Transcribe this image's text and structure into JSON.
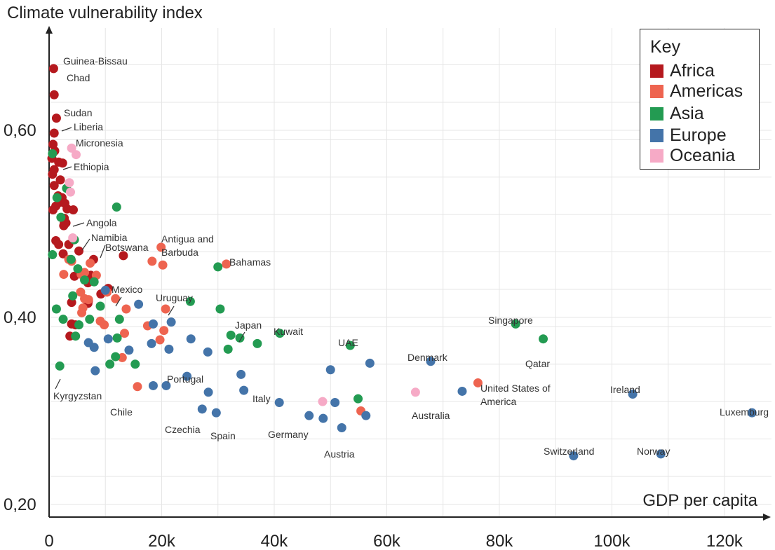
{
  "chart_data": {
    "type": "scatter",
    "title": "",
    "ylabel": "Climate vulnerability index",
    "xlabel": "GDP per capita",
    "xlim": [
      0,
      128000
    ],
    "ylim": [
      0.19,
      0.69
    ],
    "x_ticks": [
      0,
      20000,
      40000,
      60000,
      80000,
      100000,
      120000
    ],
    "x_tick_labels": [
      "0",
      "20k",
      "40k",
      "60k",
      "80k",
      "100k",
      "120k"
    ],
    "y_ticks": [
      0.2,
      0.4,
      0.6
    ],
    "y_tick_labels": [
      "0,20",
      "0,40",
      "0,60"
    ],
    "grid": true,
    "legend": {
      "title": "Key",
      "position": "top-right",
      "entries": [
        {
          "name": "Africa",
          "color": "#b5191e"
        },
        {
          "name": "Americas",
          "color": "#ee6450"
        },
        {
          "name": "Asia",
          "color": "#239b52"
        },
        {
          "name": "Europe",
          "color": "#4474a9"
        },
        {
          "name": "Oceania",
          "color": "#f6aac6"
        }
      ]
    },
    "series": [
      {
        "name": "Africa",
        "color": "#b5191e",
        "points": [
          {
            "x": 800,
            "y": 0.666,
            "label": "Guinea-Bissau"
          },
          {
            "x": 900,
            "y": 0.638,
            "label": "Chad"
          },
          {
            "x": 1300,
            "y": 0.613,
            "label": "Sudan"
          },
          {
            "x": 900,
            "y": 0.597,
            "label": "Liberia"
          },
          {
            "x": 700,
            "y": 0.585
          },
          {
            "x": 1000,
            "y": 0.578
          },
          {
            "x": 500,
            "y": 0.57
          },
          {
            "x": 1700,
            "y": 0.566
          },
          {
            "x": 2400,
            "y": 0.565
          },
          {
            "x": 900,
            "y": 0.558,
            "label": "Ethiopia"
          },
          {
            "x": 600,
            "y": 0.553
          },
          {
            "x": 2000,
            "y": 0.547
          },
          {
            "x": 900,
            "y": 0.541
          },
          {
            "x": 1600,
            "y": 0.53
          },
          {
            "x": 2300,
            "y": 0.528
          },
          {
            "x": 1900,
            "y": 0.523
          },
          {
            "x": 2800,
            "y": 0.522
          },
          {
            "x": 1200,
            "y": 0.519
          },
          {
            "x": 3200,
            "y": 0.516
          },
          {
            "x": 4300,
            "y": 0.515
          },
          {
            "x": 700,
            "y": 0.515
          },
          {
            "x": 2700,
            "y": 0.506
          },
          {
            "x": 3000,
            "y": 0.501
          },
          {
            "x": 2600,
            "y": 0.498
          },
          {
            "x": 2700,
            "y": 0.501,
            "label": "Angola"
          },
          {
            "x": 1200,
            "y": 0.482
          },
          {
            "x": 1700,
            "y": 0.478
          },
          {
            "x": 3500,
            "y": 0.478
          },
          {
            "x": 5300,
            "y": 0.471
          },
          {
            "x": 2500,
            "y": 0.468
          },
          {
            "x": 13200,
            "y": 0.466
          },
          {
            "x": 7900,
            "y": 0.462,
            "label": "Botswana"
          },
          {
            "x": 4500,
            "y": 0.444
          },
          {
            "x": 7400,
            "y": 0.445
          },
          {
            "x": 6900,
            "y": 0.437
          },
          {
            "x": 10500,
            "y": 0.431
          },
          {
            "x": 9200,
            "y": 0.425
          },
          {
            "x": 7000,
            "y": 0.418
          },
          {
            "x": 4000,
            "y": 0.416
          },
          {
            "x": 4000,
            "y": 0.393
          },
          {
            "x": 4700,
            "y": 0.392
          },
          {
            "x": 3700,
            "y": 0.38
          },
          {
            "x": 6900,
            "y": 0.415
          }
        ]
      },
      {
        "name": "Americas",
        "color": "#ee6450",
        "points": [
          {
            "x": 19900,
            "y": 0.475
          },
          {
            "x": 20200,
            "y": 0.456
          },
          {
            "x": 18300,
            "y": 0.46
          },
          {
            "x": 31500,
            "y": 0.457,
            "label": "Bahamas"
          },
          {
            "x": 3500,
            "y": 0.462
          },
          {
            "x": 4000,
            "y": 0.46
          },
          {
            "x": 7300,
            "y": 0.458
          },
          {
            "x": 2600,
            "y": 0.446
          },
          {
            "x": 5700,
            "y": 0.446
          },
          {
            "x": 6300,
            "y": 0.448
          },
          {
            "x": 8400,
            "y": 0.445
          },
          {
            "x": 5600,
            "y": 0.427
          },
          {
            "x": 6300,
            "y": 0.42
          },
          {
            "x": 7000,
            "y": 0.419
          },
          {
            "x": 11800,
            "y": 0.42,
            "label": "Mexico"
          },
          {
            "x": 10300,
            "y": 0.427
          },
          {
            "x": 6000,
            "y": 0.41
          },
          {
            "x": 5800,
            "y": 0.405
          },
          {
            "x": 20700,
            "y": 0.409,
            "label": "Uruguay"
          },
          {
            "x": 13700,
            "y": 0.409
          },
          {
            "x": 9100,
            "y": 0.396
          },
          {
            "x": 9800,
            "y": 0.392
          },
          {
            "x": 17500,
            "y": 0.391
          },
          {
            "x": 20400,
            "y": 0.386
          },
          {
            "x": 13400,
            "y": 0.383
          },
          {
            "x": 19700,
            "y": 0.376
          },
          {
            "x": 13000,
            "y": 0.357
          },
          {
            "x": 15700,
            "y": 0.326,
            "label": "Chile"
          },
          {
            "x": 76200,
            "y": 0.33,
            "label": "United States of America"
          },
          {
            "x": 55400,
            "y": 0.3
          }
        ]
      },
      {
        "name": "Asia",
        "color": "#239b52",
        "points": [
          {
            "x": 12000,
            "y": 0.518
          },
          {
            "x": 600,
            "y": 0.575
          },
          {
            "x": 3100,
            "y": 0.538
          },
          {
            "x": 1400,
            "y": 0.528
          },
          {
            "x": 2100,
            "y": 0.507
          },
          {
            "x": 4500,
            "y": 0.483,
            "label": "Namibia"
          },
          {
            "x": 600,
            "y": 0.467
          },
          {
            "x": 3900,
            "y": 0.462
          },
          {
            "x": 5100,
            "y": 0.452
          },
          {
            "x": 6300,
            "y": 0.44
          },
          {
            "x": 8000,
            "y": 0.438
          },
          {
            "x": 4200,
            "y": 0.423
          },
          {
            "x": 9100,
            "y": 0.412
          },
          {
            "x": 1300,
            "y": 0.409
          },
          {
            "x": 7200,
            "y": 0.398
          },
          {
            "x": 2500,
            "y": 0.398
          },
          {
            "x": 12500,
            "y": 0.398
          },
          {
            "x": 25100,
            "y": 0.417
          },
          {
            "x": 30400,
            "y": 0.409
          },
          {
            "x": 30000,
            "y": 0.454
          },
          {
            "x": 4700,
            "y": 0.38
          },
          {
            "x": 5300,
            "y": 0.392
          },
          {
            "x": 12100,
            "y": 0.378
          },
          {
            "x": 11800,
            "y": 0.358
          },
          {
            "x": 10800,
            "y": 0.35
          },
          {
            "x": 15300,
            "y": 0.35
          },
          {
            "x": 32300,
            "y": 0.381
          },
          {
            "x": 33900,
            "y": 0.378,
            "label": "Japan"
          },
          {
            "x": 31800,
            "y": 0.366
          },
          {
            "x": 37000,
            "y": 0.372
          },
          {
            "x": 41000,
            "y": 0.383,
            "label": "Kuwait"
          },
          {
            "x": 53500,
            "y": 0.37,
            "label": "UAE"
          },
          {
            "x": 1900,
            "y": 0.348,
            "label": "Kyrgyzstan"
          },
          {
            "x": 54900,
            "y": 0.313
          },
          {
            "x": 82900,
            "y": 0.393,
            "label": "Singapore"
          },
          {
            "x": 87800,
            "y": 0.377,
            "label": "Qatar"
          }
        ]
      },
      {
        "name": "Europe",
        "color": "#4474a9",
        "points": [
          {
            "x": 10000,
            "y": 0.429
          },
          {
            "x": 15900,
            "y": 0.414
          },
          {
            "x": 21700,
            "y": 0.395
          },
          {
            "x": 18500,
            "y": 0.393
          },
          {
            "x": 10500,
            "y": 0.377
          },
          {
            "x": 7000,
            "y": 0.373
          },
          {
            "x": 8000,
            "y": 0.368
          },
          {
            "x": 14200,
            "y": 0.365
          },
          {
            "x": 18200,
            "y": 0.372
          },
          {
            "x": 21300,
            "y": 0.366
          },
          {
            "x": 25200,
            "y": 0.377
          },
          {
            "x": 28200,
            "y": 0.363
          },
          {
            "x": 8200,
            "y": 0.343
          },
          {
            "x": 24500,
            "y": 0.337
          },
          {
            "x": 18500,
            "y": 0.327
          },
          {
            "x": 20800,
            "y": 0.327
          },
          {
            "x": 28300,
            "y": 0.32,
            "label": "Portugal"
          },
          {
            "x": 34100,
            "y": 0.339
          },
          {
            "x": 34600,
            "y": 0.322,
            "label": "Italy"
          },
          {
            "x": 27200,
            "y": 0.302,
            "label": "Czechia"
          },
          {
            "x": 29700,
            "y": 0.298,
            "label": "Spain"
          },
          {
            "x": 40900,
            "y": 0.309,
            "label": "Germany"
          },
          {
            "x": 46200,
            "y": 0.295
          },
          {
            "x": 48700,
            "y": 0.292
          },
          {
            "x": 50800,
            "y": 0.309
          },
          {
            "x": 52000,
            "y": 0.282,
            "label": "Austria"
          },
          {
            "x": 56300,
            "y": 0.295
          },
          {
            "x": 50000,
            "y": 0.344
          },
          {
            "x": 57000,
            "y": 0.351
          },
          {
            "x": 67800,
            "y": 0.353,
            "label": "Denmark"
          },
          {
            "x": 73400,
            "y": 0.321
          },
          {
            "x": 93200,
            "y": 0.252,
            "label": "Switzerland"
          },
          {
            "x": 103700,
            "y": 0.318,
            "label": "Ireland"
          },
          {
            "x": 108700,
            "y": 0.254,
            "label": "Norway"
          },
          {
            "x": 124900,
            "y": 0.298,
            "label": "Luxemburg"
          }
        ]
      },
      {
        "name": "Oceania",
        "color": "#f6aac6",
        "points": [
          {
            "x": 4000,
            "y": 0.581,
            "label": "Micronesia"
          },
          {
            "x": 4800,
            "y": 0.574
          },
          {
            "x": 3600,
            "y": 0.544
          },
          {
            "x": 3800,
            "y": 0.534
          },
          {
            "x": 4200,
            "y": 0.485
          },
          {
            "x": 48600,
            "y": 0.31
          },
          {
            "x": 65100,
            "y": 0.32,
            "label": "Australia"
          }
        ]
      }
    ],
    "annotations": [
      "Guinea-Bissau",
      "Chad",
      "Sudan",
      "Liberia",
      "Micronesia",
      "Ethiopia",
      "Angola",
      "Namibia",
      "Botswana",
      "Antigua and Barbuda",
      "Bahamas",
      "Mexico",
      "Uruguay",
      "Japan",
      "Kuwait",
      "UAE",
      "Singapore",
      "Denmark",
      "Qatar",
      "Kyrgyzstan",
      "Portugal",
      "Chile",
      "United States of America",
      "Ireland",
      "Italy",
      "Australia",
      "Czechia",
      "Spain",
      "Germany",
      "Austria",
      "Switzerland",
      "Norway",
      "Luxemburg"
    ]
  }
}
